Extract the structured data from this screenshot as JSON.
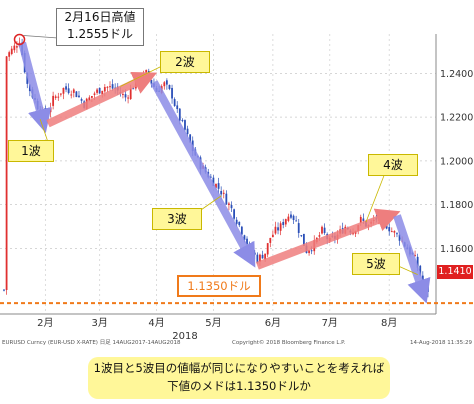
{
  "chart_data": {
    "type": "candlestick",
    "ylim": [
      1.13,
      1.258
    ],
    "y_ticks": [
      "1.2400",
      "1.2200",
      "1.2000",
      "1.1800",
      "1.1600"
    ],
    "y_tick_values": [
      1.24,
      1.22,
      1.2,
      1.18,
      1.16
    ],
    "x_ticks": [
      "2月",
      "3月",
      "4月",
      "5月",
      "6月",
      "7月",
      "8月"
    ],
    "x_year_label": "2018",
    "last_price": "1.1410",
    "support_level": 1.135,
    "series_color_up": "#e03030",
    "series_color_down": "#2b4fb8",
    "close_path": [
      [
        1,
        1.248
      ],
      [
        4,
        1.252
      ],
      [
        6,
        1.2555
      ],
      [
        9,
        1.235
      ],
      [
        13,
        1.225
      ],
      [
        16,
        1.22
      ],
      [
        19,
        1.228
      ],
      [
        23,
        1.233
      ],
      [
        27,
        1.232
      ],
      [
        31,
        1.226
      ],
      [
        35,
        1.231
      ],
      [
        39,
        1.234
      ],
      [
        43,
        1.233
      ],
      [
        47,
        1.229
      ],
      [
        51,
        1.236
      ],
      [
        55,
        1.24
      ],
      [
        59,
        1.232
      ],
      [
        62,
        1.235
      ],
      [
        65,
        1.23
      ],
      [
        67,
        1.222
      ],
      [
        70,
        1.214
      ],
      [
        73,
        1.205
      ],
      [
        76,
        1.198
      ],
      [
        80,
        1.192
      ],
      [
        84,
        1.186
      ],
      [
        88,
        1.178
      ],
      [
        92,
        1.168
      ],
      [
        95,
        1.16
      ],
      [
        98,
        1.155
      ],
      [
        101,
        1.158
      ],
      [
        103,
        1.165
      ],
      [
        105,
        1.168
      ],
      [
        107,
        1.17
      ],
      [
        109,
        1.174
      ],
      [
        111,
        1.176
      ],
      [
        113,
        1.172
      ],
      [
        115,
        1.165
      ],
      [
        117,
        1.159
      ],
      [
        120,
        1.162
      ],
      [
        123,
        1.168
      ],
      [
        126,
        1.163
      ],
      [
        129,
        1.166
      ],
      [
        132,
        1.17
      ],
      [
        135,
        1.168
      ],
      [
        138,
        1.173
      ],
      [
        141,
        1.17
      ],
      [
        144,
        1.174
      ],
      [
        147,
        1.172
      ],
      [
        150,
        1.168
      ],
      [
        153,
        1.165
      ],
      [
        156,
        1.16
      ],
      [
        159,
        1.155
      ],
      [
        161,
        1.148
      ],
      [
        163,
        1.141
      ]
    ]
  },
  "annotations": {
    "peak_date": "2月16日高値",
    "peak_value": "1.2555ドル",
    "wave1": "1波",
    "wave2": "2波",
    "wave3": "3波",
    "wave4": "4波",
    "wave5": "5波",
    "support_label": "1.1350ドル",
    "price_badge": "1.1410"
  },
  "footer": {
    "left": "EURUSD Curncy (EUR-USD X-RATE)  日足 14AUG2017-14AUG2018",
    "mid": "Copyright© 2018 Bloomberg Finance L.P.",
    "right": "14-Aug-2018 11:35:29"
  },
  "conclusion": {
    "line1": "1波目と5波目の値幅が同じになりやすいことを考えれば",
    "line2": "下値のメドは1.1350ドルか"
  },
  "colors": {
    "arrow": "#8c8ce6",
    "arrow_red": "#ee7e7e",
    "support_line": "#f07a1a",
    "badge": "#e02020",
    "note_bg": "#fff799"
  }
}
